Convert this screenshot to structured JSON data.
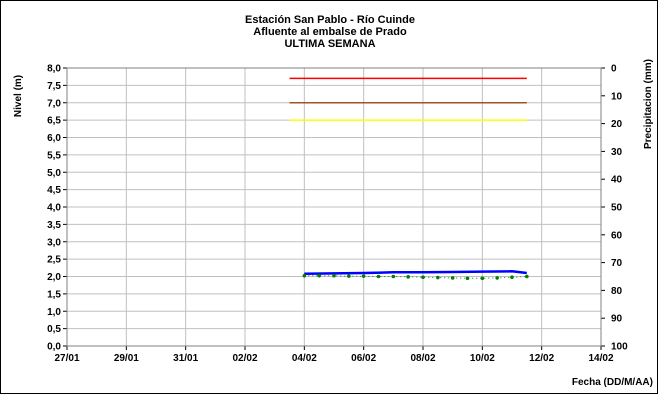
{
  "chart_data": {
    "type": "line",
    "title_lines": [
      "Estación San Pablo - Río Cuinde",
      "Afluente al embalse de Prado",
      "ULTIMA SEMANA"
    ],
    "ylabel_left": "Nivel (m)",
    "ylabel_right": "Precipitacion (mm)",
    "xlabel": "Fecha (DD/M/AA)",
    "ylim_left": [
      0,
      8
    ],
    "ylim_right": [
      0,
      100
    ],
    "right_axis_inverted": true,
    "grid": true,
    "x_domain": [
      "2024-01-27",
      "2024-02-14"
    ],
    "x_ticks": [
      "27/01",
      "29/01",
      "31/01",
      "02/02",
      "04/02",
      "06/02",
      "08/02",
      "10/02",
      "12/02",
      "14/02"
    ],
    "y_ticks_left": [
      "0,0",
      "0,5",
      "1,0",
      "1,5",
      "2,0",
      "2,5",
      "3,0",
      "3,5",
      "4,0",
      "4,5",
      "5,0",
      "5,5",
      "6,0",
      "6,5",
      "7,0",
      "7,5",
      "8,0"
    ],
    "y_ticks_right": [
      "0",
      "10",
      "20",
      "30",
      "40",
      "50",
      "60",
      "70",
      "80",
      "90",
      "100"
    ],
    "reference_lines": [
      {
        "level": 7.7,
        "x_start": "2024-02-03 12:00",
        "x_end": "2024-02-11 12:00",
        "color": "#ff0000"
      },
      {
        "level": 7.0,
        "x_start": "2024-02-03 12:00",
        "x_end": "2024-02-11 12:00",
        "color": "#a0522d"
      },
      {
        "level": 6.5,
        "x_start": "2024-02-03 12:00",
        "x_end": "2024-02-11 12:00",
        "color": "#ffff00"
      }
    ],
    "series": [
      {
        "style": "solid",
        "color": "#0000ff",
        "x": [
          "2024-02-04",
          "2024-02-05",
          "2024-02-06",
          "2024-02-07",
          "2024-02-08",
          "2024-02-09",
          "2024-02-10",
          "2024-02-11",
          "2024-02-11 12:00"
        ],
        "y": [
          2.08,
          2.09,
          2.1,
          2.12,
          2.12,
          2.13,
          2.14,
          2.15,
          2.1
        ]
      },
      {
        "style": "dotted",
        "color": "#008000",
        "x": [
          "2024-02-04",
          "2024-02-04 12:00",
          "2024-02-05",
          "2024-02-05 12:00",
          "2024-02-06",
          "2024-02-06 12:00",
          "2024-02-07",
          "2024-02-07 12:00",
          "2024-02-08",
          "2024-02-08 12:00",
          "2024-02-09",
          "2024-02-09 12:00",
          "2024-02-10",
          "2024-02-10 12:00",
          "2024-02-11",
          "2024-02-11 12:00"
        ],
        "y": [
          2.02,
          2.02,
          2.02,
          2.01,
          2.01,
          2.0,
          2.0,
          1.99,
          1.98,
          1.97,
          1.96,
          1.95,
          1.95,
          1.96,
          1.98,
          2.0
        ]
      }
    ]
  }
}
